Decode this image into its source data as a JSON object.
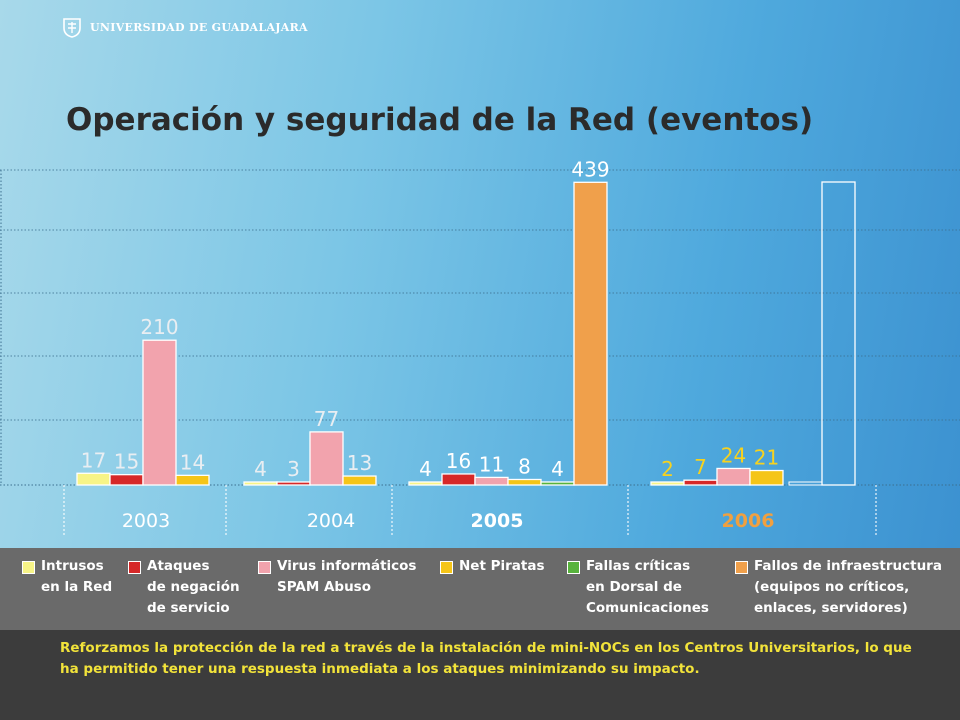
{
  "header": {
    "institution": "UNIVERSIDAD DE GUADALAJARA",
    "logo_icon": "university-seal-icon"
  },
  "chart_data": {
    "type": "bar",
    "title": "Operación y seguridad de la Red (eventos)",
    "xlabel": "",
    "ylabel": "",
    "grid": true,
    "legend_position": "bottom",
    "categories": [
      "2003",
      "2004",
      "2005",
      "2006"
    ],
    "category_highlight": [
      "#ffffff",
      "#ffffff",
      "#ffffff",
      "#f0a040"
    ],
    "series": [
      {
        "name": "Intrusos en la Red",
        "legend_text": "Intrusos\nen la Red",
        "color": "#f7f487",
        "values": [
          17,
          4,
          4,
          2
        ]
      },
      {
        "name": "Ataques de negación de servicio",
        "legend_text": "Ataques\nde negación\nde servicio",
        "color": "#d62828",
        "values": [
          15,
          3,
          16,
          7
        ]
      },
      {
        "name": "Virus informáticos SPAM Abuso",
        "legend_text": "Virus informáticos\nSPAM Abuso",
        "color": "#f2a3ad",
        "values": [
          210,
          77,
          11,
          24
        ]
      },
      {
        "name": "Net Piratas",
        "legend_text": "Net Piratas",
        "color": "#f5c518",
        "values": [
          14,
          13,
          8,
          21
        ]
      },
      {
        "name": "Fallas críticas en Dorsal de Comunicaciones",
        "legend_text": "Fallas críticas\nen Dorsal de\nComunicaciones",
        "color": "#57b33c",
        "values": [
          null,
          null,
          4,
          null
        ]
      },
      {
        "name": "Fallos de infraestructura (equipos no críticos, enlaces, servidores)",
        "legend_text": "Fallos de infraestructura\n(equipos no críticos,\nenlaces, servidores)",
        "color": "#f0a04b",
        "values": [
          null,
          null,
          439,
          null
        ]
      }
    ],
    "data_labels": [
      [
        "17",
        "4",
        "4",
        "2"
      ],
      [
        "15",
        "3",
        "16",
        "7"
      ],
      [
        "210",
        "77",
        "11",
        "24"
      ],
      [
        "14",
        "13",
        "8",
        "21"
      ],
      [
        "",
        "",
        "4",
        ""
      ],
      [
        "",
        "",
        "439",
        ""
      ]
    ],
    "ylim": [
      0,
      500
    ]
  },
  "caption": "Reforzamos la protección de la red a través de la instalación de mini-NOCs en los Centros Universitarios, lo que ha permitido tener una respuesta inmediata a los ataques minimizando su impacto."
}
